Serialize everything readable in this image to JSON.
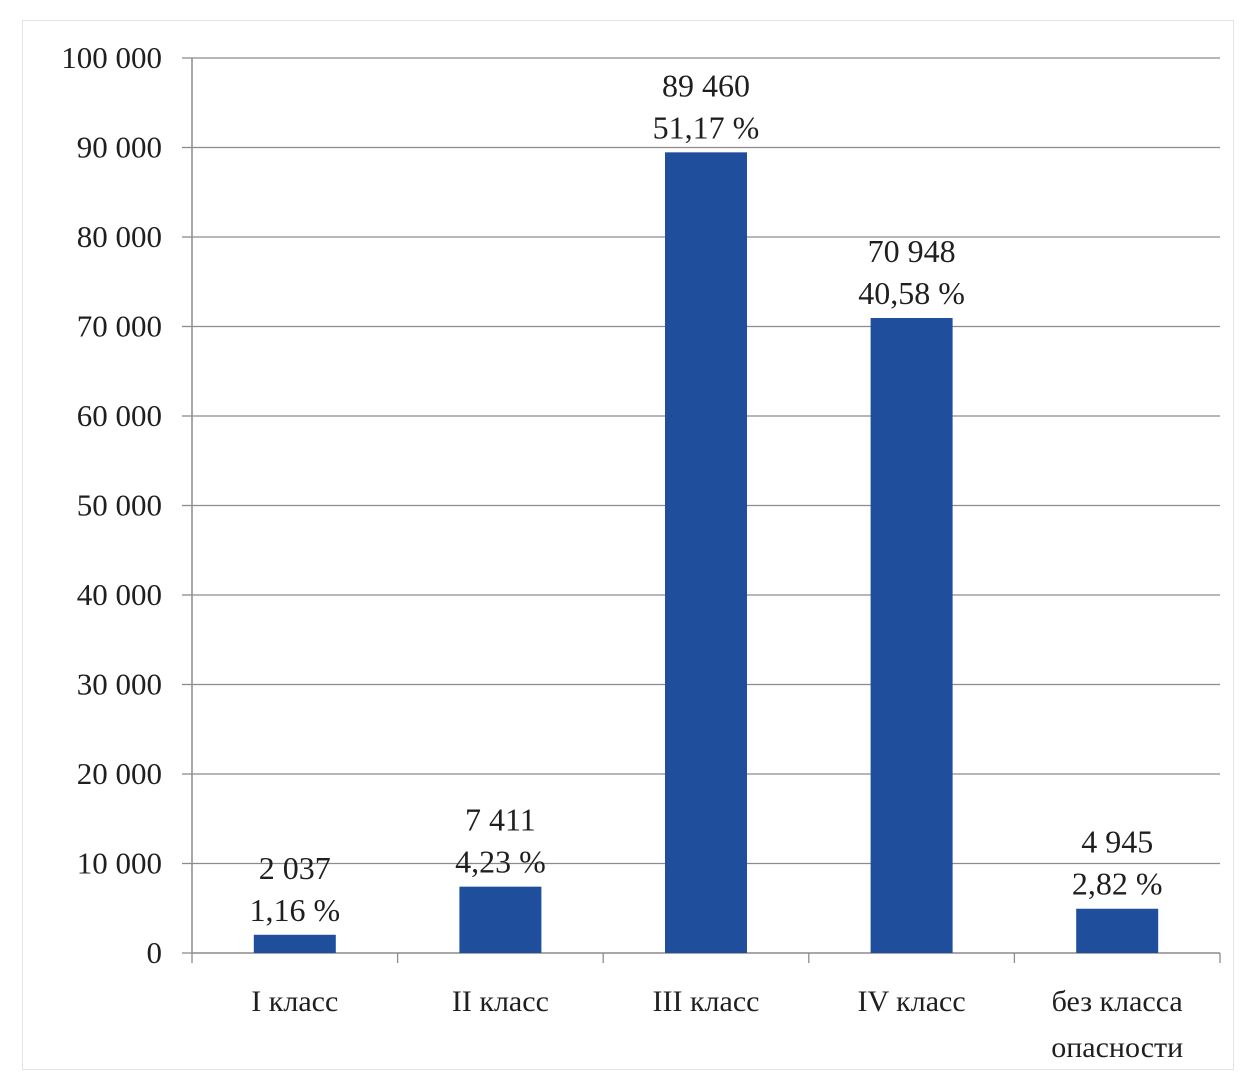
{
  "chart_data": {
    "type": "bar",
    "categories": [
      "I класс",
      "II класс",
      "III класс",
      "IV класс",
      "без класса опасности"
    ],
    "category_lines": [
      [
        "I класс"
      ],
      [
        "II класс"
      ],
      [
        "III класс"
      ],
      [
        "IV класс"
      ],
      [
        "без класса",
        "опасности"
      ]
    ],
    "values": [
      2037,
      7411,
      89460,
      70948,
      4945
    ],
    "value_labels": [
      "2 037",
      "7 411",
      "89 460",
      "70 948",
      "4 945"
    ],
    "percent_labels": [
      "1,16 %",
      "4,23 %",
      "51,17 %",
      "40,58 %",
      "2,82 %"
    ],
    "ylim": [
      0,
      100000
    ],
    "yticks": [
      0,
      10000,
      20000,
      30000,
      40000,
      50000,
      60000,
      70000,
      80000,
      90000,
      100000
    ],
    "ytick_labels": [
      "0",
      "10 000",
      "20 000",
      "30 000",
      "40 000",
      "50 000",
      "60 000",
      "70 000",
      "80 000",
      "90 000",
      "100 000"
    ],
    "title": "",
    "xlabel": "",
    "ylabel": "",
    "grid": true,
    "bar_color": "#1f4e9c",
    "grid_color": "#8c8c8c",
    "axis_color": "#8c8c8c"
  }
}
